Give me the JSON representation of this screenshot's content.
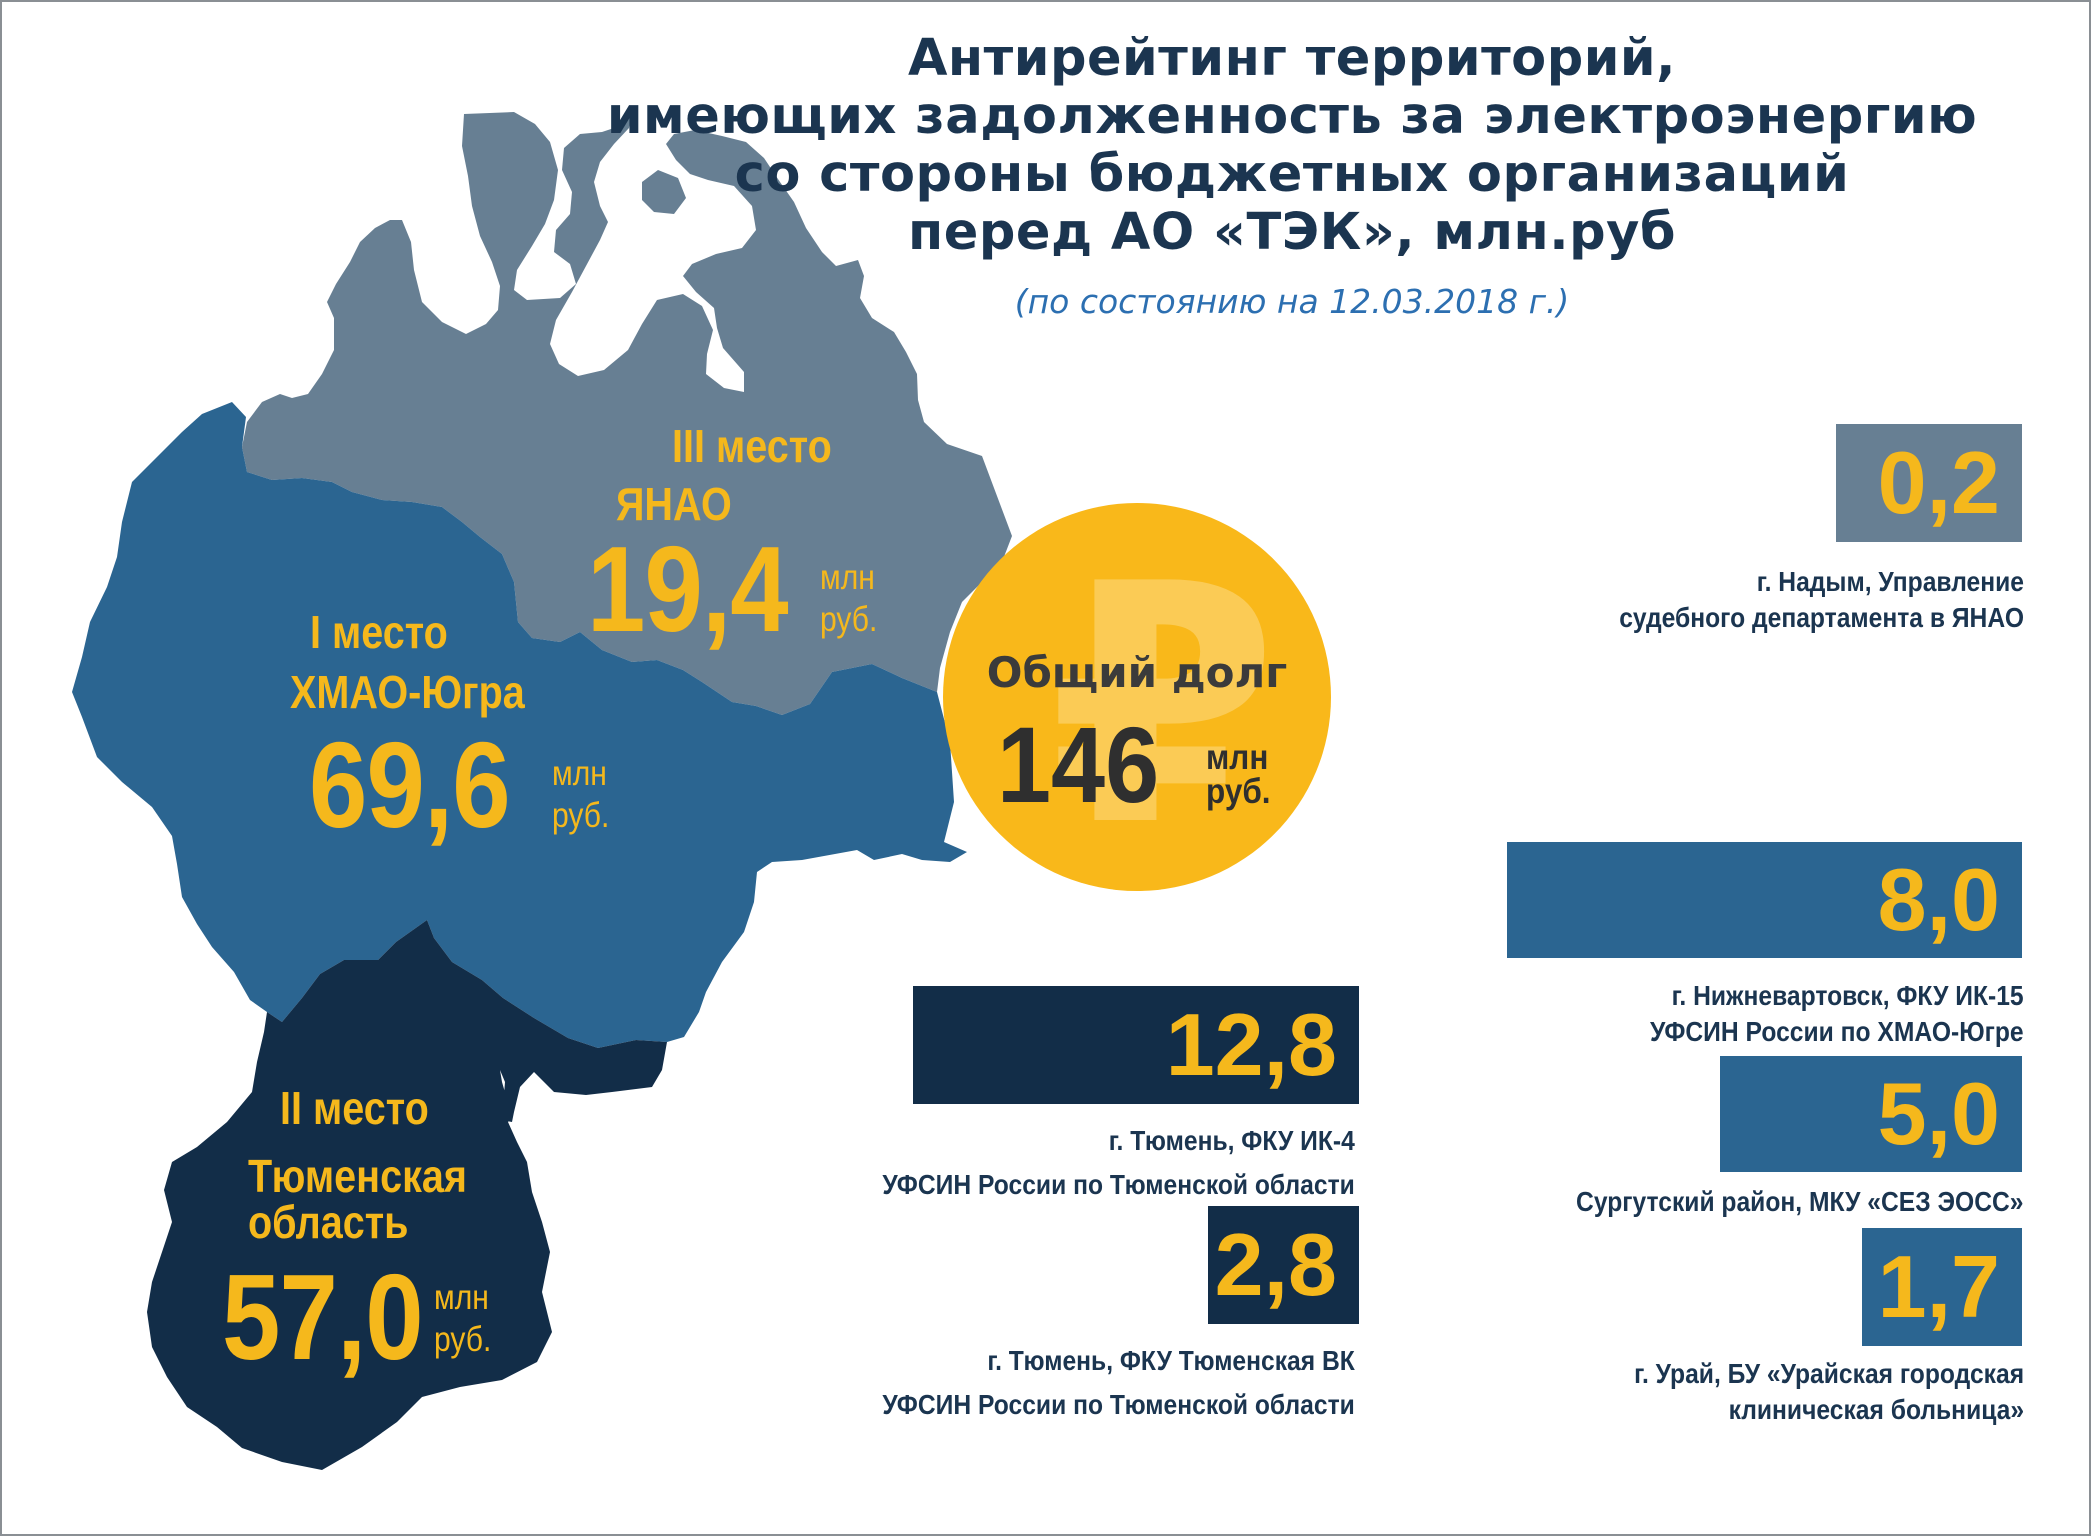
{
  "title": {
    "line1": "Антирейтинг территорий,",
    "line2": "имеющих задолженность за электроэнергию",
    "line3": "со стороны бюджетных организаций",
    "line4": "перед АО «ТЭК», млн.руб"
  },
  "date_note": "(по состоянию на 12.03.2018 г.)",
  "colors": {
    "title": "#1b3550",
    "yanao": "#677f93",
    "khmao": "#2b6591",
    "tyumen": "#122d48",
    "accent": "#f5b81c",
    "date_note": "#2c6fb1"
  },
  "regions": [
    {
      "id": "yanao",
      "rank": "III место",
      "name": "ЯНАО",
      "value": "19,4",
      "unit1": "млн",
      "unit2": "руб."
    },
    {
      "id": "khmao",
      "rank": "I место",
      "name": "ХМАО-Югра",
      "value": "69,6",
      "unit1": "млн",
      "unit2": "руб."
    },
    {
      "id": "tyumen",
      "rank": "II место",
      "name1": "Тюменская",
      "name2": "область",
      "value": "57,0",
      "unit1": "млн",
      "unit2": "руб."
    }
  ],
  "total": {
    "label": "Общий долг",
    "value": "146",
    "unit1": "млн",
    "unit2": "руб.",
    "icon": "ruble-icon"
  },
  "debtors": [
    {
      "value": "0,2",
      "amount": 0.2,
      "region": "yanao",
      "line1": "г. Надым, Управление",
      "line2": "судебного департамента в ЯНАО"
    },
    {
      "value": "8,0",
      "amount": 8.0,
      "region": "khmao",
      "line1": "г. Нижневартовск, ФКУ ИК-15",
      "line2": "УФСИН России по ХМАО-Югре"
    },
    {
      "value": "5,0",
      "amount": 5.0,
      "region": "khmao",
      "line1": "Сургутский район, МКУ «СЕЗ ЭОСС»"
    },
    {
      "value": "1,7",
      "amount": 1.7,
      "region": "khmao",
      "line1": "г. Урай, БУ «Урайская городская",
      "line2": "клиническая больница»"
    },
    {
      "value": "12,8",
      "amount": 12.8,
      "region": "tyumen",
      "line1": "г. Тюмень, ФКУ ИК-4",
      "line2": "УФСИН России по Тюменской области"
    },
    {
      "value": "2,8",
      "amount": 2.8,
      "region": "tyumen",
      "line1": "г. Тюмень, ФКУ Тюменская ВК",
      "line2": "УФСИН России по Тюменской области"
    }
  ]
}
